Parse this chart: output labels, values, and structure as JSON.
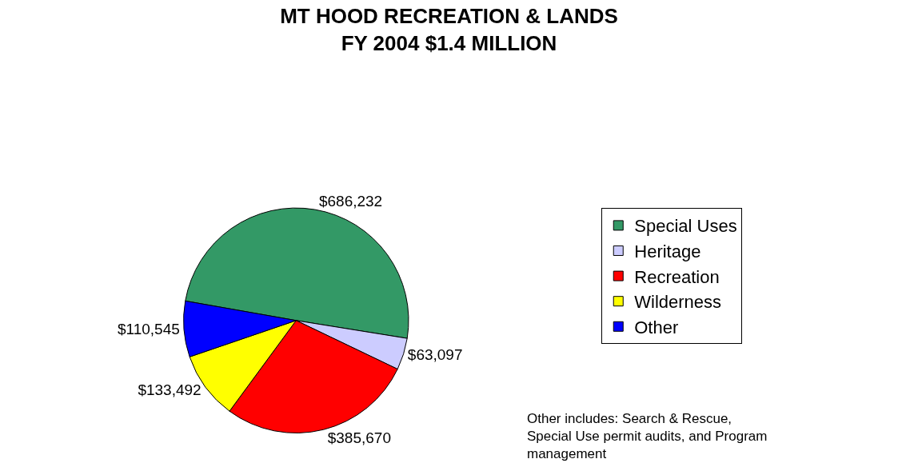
{
  "chart_data": {
    "type": "pie",
    "title": "MT HOOD RECREATION & LANDS\nFY 2004 $1.4 MILLION",
    "categories": [
      "Special Uses",
      "Heritage",
      "Recreation",
      "Wilderness",
      "Other"
    ],
    "values": [
      686232,
      63097,
      385670,
      133492,
      110545
    ],
    "value_labels": [
      "$686,232",
      "$63,097",
      "$385,670",
      "$133,492",
      "$110,545"
    ],
    "colors": [
      "#339966",
      "#ccccff",
      "#ff0000",
      "#ffff00",
      "#0000ff"
    ],
    "legend": "right",
    "annotations": [
      "Other includes: Search & Rescue,\nSpecial Use permit audits, and Program\nmanagement"
    ]
  }
}
